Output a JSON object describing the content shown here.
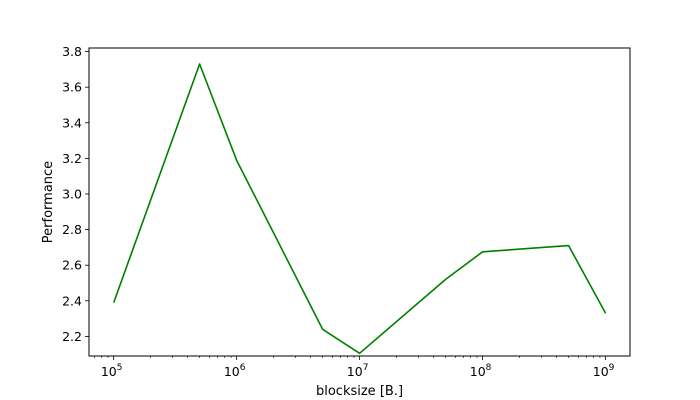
{
  "chart_data": {
    "type": "line",
    "title": "",
    "xlabel": "blocksize [B.]",
    "ylabel": "Performance",
    "xscale": "log",
    "xlim": [
      63000,
      1580000000
    ],
    "ylim": [
      2.09,
      3.82
    ],
    "grid": false,
    "legend": "none",
    "x_ticks": [
      {
        "value": 100000,
        "base": "10",
        "exp": "5"
      },
      {
        "value": 1000000,
        "base": "10",
        "exp": "6"
      },
      {
        "value": 10000000,
        "base": "10",
        "exp": "7"
      },
      {
        "value": 100000000,
        "base": "10",
        "exp": "8"
      },
      {
        "value": 1000000000,
        "base": "10",
        "exp": "9"
      }
    ],
    "y_ticks": [
      {
        "value": 2.2,
        "label": "2.2"
      },
      {
        "value": 2.4,
        "label": "2.4"
      },
      {
        "value": 2.6,
        "label": "2.6"
      },
      {
        "value": 2.8,
        "label": "2.8"
      },
      {
        "value": 3.0,
        "label": "3.0"
      },
      {
        "value": 3.2,
        "label": "3.2"
      },
      {
        "value": 3.4,
        "label": "3.4"
      },
      {
        "value": 3.6,
        "label": "3.6"
      },
      {
        "value": 3.8,
        "label": "3.8"
      }
    ],
    "series": [
      {
        "color": "#008000",
        "x": [
          100000,
          500000,
          1000000,
          5000000,
          10000000,
          50000000,
          100000000,
          500000000,
          1000000000
        ],
        "y": [
          2.39,
          3.73,
          3.19,
          2.24,
          2.105,
          2.52,
          2.675,
          2.71,
          2.33
        ]
      }
    ]
  }
}
